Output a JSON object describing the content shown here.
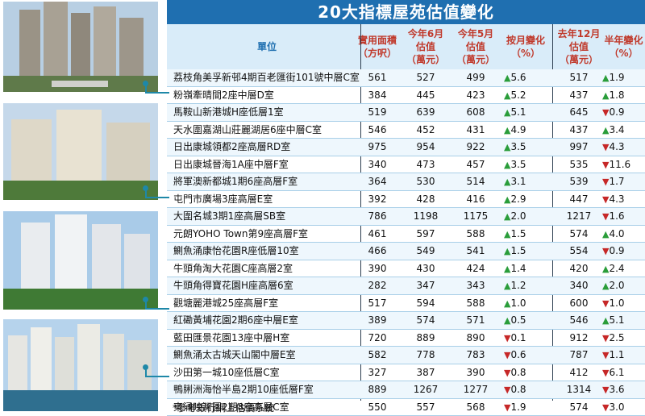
{
  "title": "20大指標屋苑估值變化",
  "headers": {
    "unit": "單位",
    "area": [
      "實用面積",
      "（方呎）"
    ],
    "jun": [
      "今年6月",
      "估值",
      "（萬元）"
    ],
    "may": [
      "今年5月",
      "估值",
      "（萬元）"
    ],
    "mchg": [
      "按月變化",
      "（%）"
    ],
    "dec": [
      "去年12月",
      "估值",
      "（萬元）"
    ],
    "hchg": [
      "半年變化",
      "（%）"
    ]
  },
  "rows": [
    {
      "name": "荔枝角美孚新邨4期百老匯街101號中層C室",
      "area": "561",
      "jun": "527",
      "may": "499",
      "mdir": "up",
      "mchg": "5.6",
      "dec": "517",
      "hdir": "up",
      "hchg": "1.9"
    },
    {
      "name": "粉嶺牽晴間2座中層D室",
      "area": "384",
      "jun": "445",
      "may": "423",
      "mdir": "up",
      "mchg": "5.2",
      "dec": "437",
      "hdir": "up",
      "hchg": "1.8"
    },
    {
      "name": "馬鞍山新港城H座低層1室",
      "area": "519",
      "jun": "639",
      "may": "608",
      "mdir": "up",
      "mchg": "5.1",
      "dec": "645",
      "hdir": "down",
      "hchg": "0.9"
    },
    {
      "name": "天水圍嘉湖山莊麗湖居6座中層C室",
      "area": "546",
      "jun": "452",
      "may": "431",
      "mdir": "up",
      "mchg": "4.9",
      "dec": "437",
      "hdir": "up",
      "hchg": "3.4"
    },
    {
      "name": "日出康城領都2座高層RD室",
      "area": "975",
      "jun": "954",
      "may": "922",
      "mdir": "up",
      "mchg": "3.5",
      "dec": "997",
      "hdir": "down",
      "hchg": "4.3"
    },
    {
      "name": "日出康城晉海1A座中層F室",
      "area": "340",
      "jun": "473",
      "may": "457",
      "mdir": "up",
      "mchg": "3.5",
      "dec": "535",
      "hdir": "down",
      "hchg": "11.6"
    },
    {
      "name": "將軍澳新都城1期6座高層F室",
      "area": "364",
      "jun": "530",
      "may": "514",
      "mdir": "up",
      "mchg": "3.1",
      "dec": "539",
      "hdir": "down",
      "hchg": "1.7"
    },
    {
      "name": "屯門市廣場3座高層E室",
      "area": "392",
      "jun": "428",
      "may": "416",
      "mdir": "up",
      "mchg": "2.9",
      "dec": "447",
      "hdir": "down",
      "hchg": "4.3"
    },
    {
      "name": "大圍名城3期1座高層SB室",
      "area": "786",
      "jun": "1198",
      "may": "1175",
      "mdir": "up",
      "mchg": "2.0",
      "dec": "1217",
      "hdir": "down",
      "hchg": "1.6"
    },
    {
      "name": "元朗YOHO Town第9座高層F室",
      "area": "461",
      "jun": "597",
      "may": "588",
      "mdir": "up",
      "mchg": "1.5",
      "dec": "574",
      "hdir": "up",
      "hchg": "4.0"
    },
    {
      "name": "鰂魚涌康怡花園R座低層10室",
      "area": "466",
      "jun": "549",
      "may": "541",
      "mdir": "up",
      "mchg": "1.5",
      "dec": "554",
      "hdir": "down",
      "hchg": "0.9"
    },
    {
      "name": "牛頭角淘大花園C座高層2室",
      "area": "390",
      "jun": "430",
      "may": "424",
      "mdir": "up",
      "mchg": "1.4",
      "dec": "420",
      "hdir": "up",
      "hchg": "2.4"
    },
    {
      "name": "牛頭角得寶花園H座高層6室",
      "area": "282",
      "jun": "347",
      "may": "343",
      "mdir": "up",
      "mchg": "1.2",
      "dec": "340",
      "hdir": "up",
      "hchg": "2.0"
    },
    {
      "name": "觀塘麗港城25座高層F室",
      "area": "517",
      "jun": "594",
      "may": "588",
      "mdir": "up",
      "mchg": "1.0",
      "dec": "600",
      "hdir": "down",
      "hchg": "1.0"
    },
    {
      "name": "紅磡黃埔花園2期6座中層E室",
      "area": "389",
      "jun": "574",
      "may": "571",
      "mdir": "up",
      "mchg": "0.5",
      "dec": "546",
      "hdir": "up",
      "hchg": "5.1"
    },
    {
      "name": "藍田匯景花園13座中層H室",
      "area": "720",
      "jun": "889",
      "may": "890",
      "mdir": "down",
      "mchg": "0.1",
      "dec": "912",
      "hdir": "down",
      "hchg": "2.5"
    },
    {
      "name": "鰂魚涌太古城天山閣中層E室",
      "area": "582",
      "jun": "778",
      "may": "783",
      "mdir": "down",
      "mchg": "0.6",
      "dec": "787",
      "hdir": "down",
      "hchg": "1.1"
    },
    {
      "name": "沙田第一城10座低層C室",
      "area": "327",
      "jun": "387",
      "may": "390",
      "mdir": "down",
      "mchg": "0.8",
      "dec": "412",
      "hdir": "down",
      "hchg": "6.1"
    },
    {
      "name": "鴨脷洲海怡半島2期10座低層F室",
      "area": "889",
      "jun": "1267",
      "may": "1277",
      "mdir": "down",
      "mchg": "0.8",
      "dec": "1314",
      "hdir": "down",
      "hchg": "3.6"
    },
    {
      "name": "東涌映灣園2期8座高層C室",
      "area": "550",
      "jun": "557",
      "may": "568",
      "mdir": "down",
      "mchg": "1.9",
      "dec": "574",
      "hdir": "down",
      "hchg": "3.0"
    }
  ],
  "arrows": {
    "up": "▲",
    "down": "▼"
  },
  "footnote": "*參考銀行網上估價系統"
}
